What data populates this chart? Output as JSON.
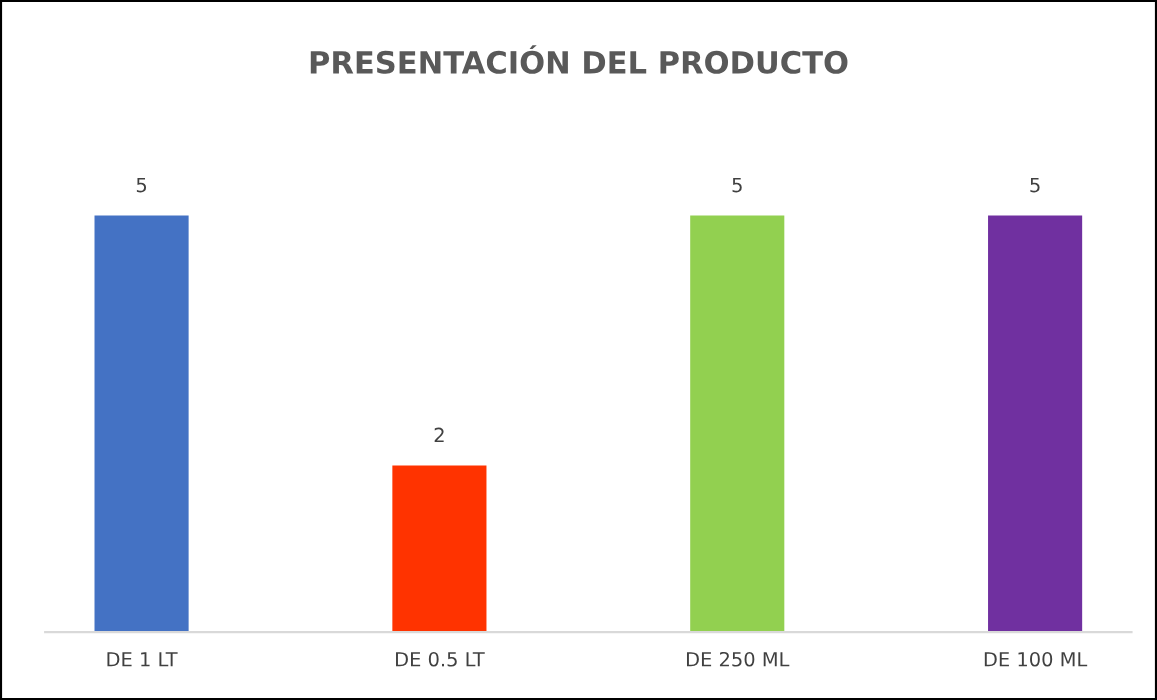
{
  "chart_data": {
    "type": "bar",
    "title": "PRESENTACIÓN DEL PRODUCTO",
    "categories": [
      "DE 1 LT",
      "DE 0.5 LT",
      "DE 250 ML",
      "DE 100 ML"
    ],
    "values": [
      5,
      2,
      5,
      5
    ],
    "colors": [
      "#4472c4",
      "#ff3300",
      "#92d050",
      "#7030a0"
    ],
    "data_labels": true,
    "grid": false,
    "legend": false
  }
}
